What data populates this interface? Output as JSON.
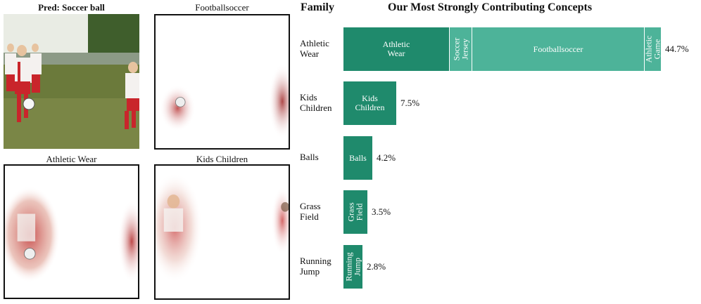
{
  "panels": {
    "pred_title": "Pred: Soccer ball",
    "football_title": "Footballsoccer",
    "athletic_title": "Athletic Wear",
    "kids_title": "Kids Children"
  },
  "headers": {
    "family": "Family",
    "concepts": "Our Most Strongly Contributing Concepts"
  },
  "colors": {
    "dark_green": "#1f8a6c",
    "light_green": "#4db399"
  },
  "families": [
    {
      "label": "Athletic\nWear",
      "total": "44.7%",
      "segments": [
        {
          "label": "Athletic\nWear",
          "value": 14.9,
          "color": "dark",
          "rotated": false
        },
        {
          "label": "Soccer\nJersey",
          "value": 3.2,
          "color": "light",
          "rotated": true
        },
        {
          "label": "Footballsoccer",
          "value": 24.2,
          "color": "light",
          "rotated": false
        },
        {
          "label": "Athletic\nGame",
          "value": 2.4,
          "color": "light",
          "rotated": true
        }
      ]
    },
    {
      "label": "Kids\nChildren",
      "total": "7.5%",
      "segments": [
        {
          "label": "Kids\nChildren",
          "value": 7.5,
          "color": "dark",
          "rotated": false
        }
      ]
    },
    {
      "label": "Balls",
      "total": "4.2%",
      "segments": [
        {
          "label": "Balls",
          "value": 4.2,
          "color": "dark",
          "rotated": false
        }
      ]
    },
    {
      "label": "Grass\nField",
      "total": "3.5%",
      "segments": [
        {
          "label": "Grass\nField",
          "value": 3.5,
          "color": "dark",
          "rotated": true
        }
      ]
    },
    {
      "label": "Running\nJump",
      "total": "2.8%",
      "segments": [
        {
          "label": "Running\nJump",
          "value": 2.8,
          "color": "dark",
          "rotated": true
        }
      ]
    }
  ]
}
